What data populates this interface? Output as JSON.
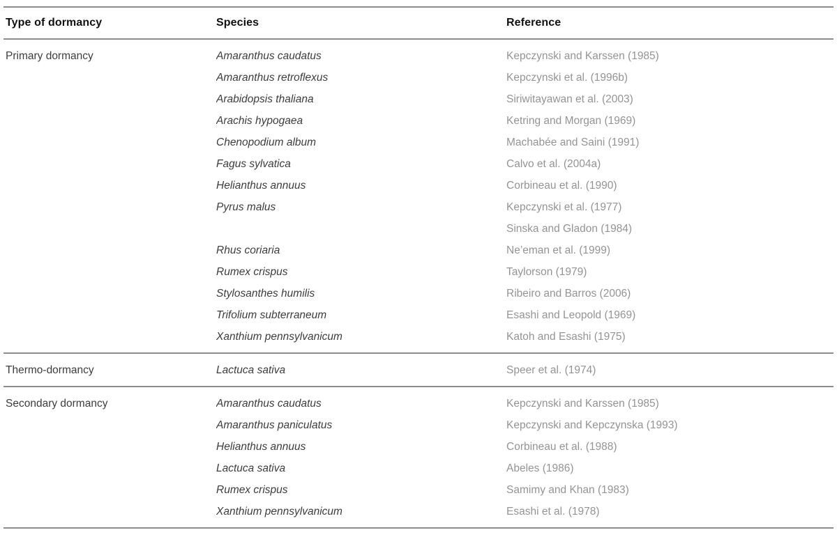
{
  "table": {
    "columns": [
      "Type of dormancy",
      "Species",
      "Reference"
    ],
    "colors": {
      "header_text": "#111111",
      "dormancy_type_text": "#3d3d3d",
      "species_text": "#3d3d3d",
      "reference_text": "#949494",
      "rule_gray": "#8c8c8c",
      "background": "#ffffff"
    },
    "sections": [
      {
        "type": "Primary dormancy",
        "rows": [
          {
            "species": "Amaranthus caudatus",
            "reference": "Kepczynski and Karssen (1985)"
          },
          {
            "species": "Amaranthus retroflexus",
            "reference": "Kepczynski et al. (1996b)"
          },
          {
            "species": "Arabidopsis thaliana",
            "reference": "Siriwitayawan et al. (2003)"
          },
          {
            "species": "Arachis hypogaea",
            "reference": "Ketring and Morgan (1969)"
          },
          {
            "species": "Chenopodium album",
            "reference": "Machabée and Saini (1991)"
          },
          {
            "species": "Fagus sylvatica",
            "reference": "Calvo et al. (2004a)"
          },
          {
            "species": "Helianthus annuus",
            "reference": "Corbineau et al. (1990)"
          },
          {
            "species": "Pyrus malus",
            "reference": "Kepczynski et al. (1977)"
          },
          {
            "species": "",
            "reference": "Sinska and Gladon (1984)"
          },
          {
            "species": "Rhus coriaria",
            "reference": "Ne’eman et al. (1999)"
          },
          {
            "species": "Rumex crispus",
            "reference": "Taylorson (1979)"
          },
          {
            "species": "Stylosanthes humilis",
            "reference": "Ribeiro and Barros (2006)"
          },
          {
            "species": "Trifolium subterraneum",
            "reference": "Esashi and Leopold (1969)"
          },
          {
            "species": "Xanthium pennsylvanicum",
            "reference": "Katoh and Esashi (1975)"
          }
        ]
      },
      {
        "type": "Thermo-dormancy",
        "rows": [
          {
            "species": "Lactuca sativa",
            "reference": "Speer et al. (1974)"
          }
        ]
      },
      {
        "type": "Secondary dormancy",
        "rows": [
          {
            "species": "Amaranthus caudatus",
            "reference": "Kepczynski and Karssen (1985)"
          },
          {
            "species": "Amaranthus paniculatus",
            "reference": "Kepczynski and Kepczynska (1993)"
          },
          {
            "species": "Helianthus annuus",
            "reference": "Corbineau et al. (1988)"
          },
          {
            "species": "Lactuca sativa",
            "reference": "Abeles (1986)"
          },
          {
            "species": "Rumex crispus",
            "reference": "Samimy and Khan (1983)"
          },
          {
            "species": "Xanthium pennsylvanicum",
            "reference": "Esashi et al. (1978)"
          }
        ]
      }
    ]
  }
}
